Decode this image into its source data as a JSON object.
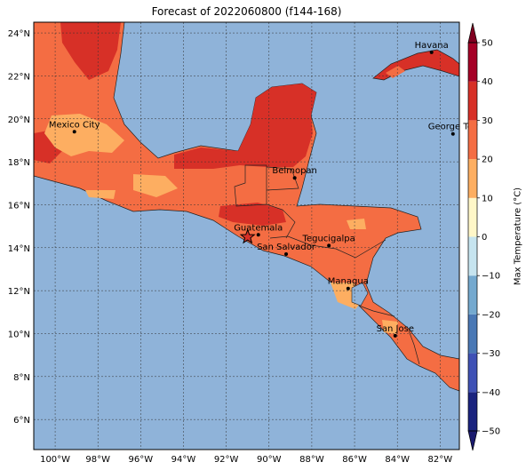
{
  "title": "Forecast of 2022060800 (f144-168)",
  "colorbar": {
    "label": "Max Temperature (°C)",
    "ticks": [
      "−50",
      "−40",
      "−30",
      "−20",
      "−10",
      "0",
      "10",
      "20",
      "30",
      "40",
      "50"
    ],
    "colors": [
      "#1a237e",
      "#283593",
      "#3f51b5",
      "#4a78b5",
      "#74a9cf",
      "#a6cde3",
      "#e0f3f8",
      "#ffffff",
      "#ffffcc",
      "#fee090",
      "#fdae61",
      "#f46d43",
      "#d73027",
      "#a50026",
      "#800020"
    ]
  },
  "axes": {
    "lon_labels": [
      "100°W",
      "98°W",
      "96°W",
      "94°W",
      "92°W",
      "90°W",
      "88°W",
      "86°W",
      "84°W",
      "82°W"
    ],
    "lat_labels": [
      "24°N",
      "22°N",
      "20°N",
      "18°N",
      "16°N",
      "14°N",
      "12°N",
      "10°N",
      "8°N",
      "6°N"
    ]
  },
  "cities": [
    {
      "name": "Havana",
      "lon": -82.4,
      "lat": 23.1
    },
    {
      "name": "Mexico City",
      "lon": -99.1,
      "lat": 19.4
    },
    {
      "name": "George Tov",
      "lon": -81.4,
      "lat": 19.3
    },
    {
      "name": "Belmopan",
      "lon": -88.8,
      "lat": 17.25
    },
    {
      "name": "Guatemala",
      "lon": -90.5,
      "lat": 14.6
    },
    {
      "name": "San Salvador",
      "lon": -89.2,
      "lat": 13.7
    },
    {
      "name": "Tegucigalpa",
      "lon": -87.2,
      "lat": 14.1
    },
    {
      "name": "Managua",
      "lon": -86.3,
      "lat": 12.1
    },
    {
      "name": "San Jose",
      "lon": -84.1,
      "lat": 9.9
    }
  ],
  "marker": {
    "name": "star",
    "lon": -91.0,
    "lat": 14.5
  }
}
